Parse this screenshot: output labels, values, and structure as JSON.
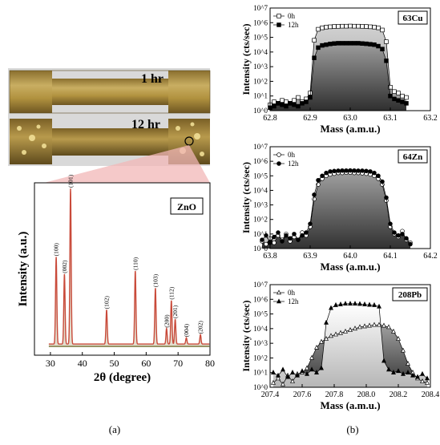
{
  "photo": {
    "label_top": "1 hr",
    "label_bottom": "12 hr",
    "colors": {
      "brass": "#a88a3e",
      "brass_light": "#cdb56a",
      "brass_dark": "#6e5622",
      "highlight": "#f1df96",
      "zoom_fill": "#f2b7b7"
    }
  },
  "panel_labels": {
    "a": "(a)",
    "b": "(b)"
  },
  "xrd": {
    "legend": "ZnO",
    "xlabel": "2θ (degree)",
    "ylabel": "Intensity (a.u.)",
    "xticks": [
      "30",
      "40",
      "50",
      "60",
      "70",
      "80"
    ],
    "line_color": "#c94a3a",
    "fill_color": "#8a7a3a",
    "peak_labels": [
      {
        "text": "(100)",
        "x": 31.8
      },
      {
        "text": "(002)",
        "x": 34.4
      },
      {
        "text": "(101)",
        "x": 36.3
      },
      {
        "text": "(102)",
        "x": 47.6
      },
      {
        "text": "(110)",
        "x": 56.6
      },
      {
        "text": "(103)",
        "x": 62.9
      },
      {
        "text": "(200)",
        "x": 66.4
      },
      {
        "text": "(112)",
        "x": 67.9
      },
      {
        "text": "(201)",
        "x": 69.1
      },
      {
        "text": "(004)",
        "x": 72.6
      },
      {
        "text": "(202)",
        "x": 77.0
      }
    ]
  },
  "chart_data": [
    {
      "type": "line",
      "title": "",
      "xlabel": "2θ (degree)",
      "ylabel": "Intensity (a.u.)",
      "xlim": [
        25,
        80
      ],
      "ylim": [
        0,
        1
      ],
      "series": [
        {
          "name": "ZnO",
          "x": [
            31.8,
            34.4,
            36.3,
            47.6,
            56.6,
            62.9,
            66.4,
            67.9,
            69.1,
            72.6,
            77.0
          ],
          "values": [
            0.56,
            0.45,
            1.0,
            0.22,
            0.47,
            0.36,
            0.1,
            0.28,
            0.16,
            0.04,
            0.06
          ]
        }
      ]
    },
    {
      "type": "area",
      "legend_label": "63Cu",
      "xlabel": "Mass (a.m.u.)",
      "ylabel": "Intensity (cts/sec)",
      "xlim": [
        62.8,
        63.2
      ],
      "ylim_exp": [
        0,
        7
      ],
      "yscale": "log",
      "xticks": [
        "62.8",
        "62.9",
        "63.0",
        "63.1",
        "63.2"
      ],
      "yticks": [
        "10^0",
        "10^1",
        "10^2",
        "10^3",
        "10^4",
        "10^5",
        "10^6",
        "10^7"
      ],
      "series": [
        {
          "name": "0h",
          "marker": "open-square",
          "x": [
            62.8,
            62.81,
            62.82,
            62.83,
            62.84,
            62.85,
            62.86,
            62.87,
            62.88,
            62.89,
            62.9,
            62.91,
            62.92,
            62.93,
            62.94,
            62.95,
            62.96,
            62.97,
            62.98,
            62.99,
            63.0,
            63.01,
            63.02,
            63.03,
            63.04,
            63.05,
            63.06,
            63.07,
            63.08,
            63.09,
            63.1,
            63.11,
            63.12,
            63.13,
            63.14
          ],
          "log10": [
            0.4,
            0.6,
            0.5,
            0.7,
            0.6,
            0.5,
            0.7,
            0.9,
            0.6,
            0.8,
            1.2,
            4.8,
            5.55,
            5.65,
            5.7,
            5.72,
            5.74,
            5.75,
            5.76,
            5.76,
            5.77,
            5.76,
            5.76,
            5.75,
            5.74,
            5.72,
            5.7,
            5.65,
            5.5,
            4.7,
            1.6,
            1.3,
            1.2,
            1.0,
            0.9
          ]
        },
        {
          "name": "12h",
          "marker": "filled-square",
          "x": [
            62.8,
            62.81,
            62.82,
            62.83,
            62.84,
            62.85,
            62.86,
            62.87,
            62.88,
            62.89,
            62.9,
            62.91,
            62.92,
            62.93,
            62.94,
            62.95,
            62.96,
            62.97,
            62.98,
            62.99,
            63.0,
            63.01,
            63.02,
            63.03,
            63.04,
            63.05,
            63.06,
            63.07,
            63.08,
            63.09,
            63.1,
            63.11,
            63.12,
            63.13,
            63.14
          ],
          "log10": [
            0.2,
            0.3,
            0.5,
            0.4,
            0.3,
            0.5,
            0.4,
            0.3,
            0.5,
            0.6,
            0.9,
            3.6,
            4.3,
            4.45,
            4.5,
            4.55,
            4.58,
            4.6,
            4.6,
            4.6,
            4.6,
            4.6,
            4.6,
            4.58,
            4.56,
            4.53,
            4.5,
            4.4,
            4.2,
            3.4,
            1.0,
            0.8,
            0.7,
            0.6,
            0.5
          ]
        }
      ]
    },
    {
      "type": "area",
      "legend_label": "64Zn",
      "xlabel": "Mass (a.m.u.)",
      "ylabel": "Intensity (cts/sec)",
      "xlim": [
        63.8,
        64.2
      ],
      "ylim_exp": [
        0,
        7
      ],
      "yscale": "log",
      "xticks": [
        "63.8",
        "63.9",
        "64.0",
        "64.1",
        "64.2"
      ],
      "yticks": [
        "10^0",
        "10^1",
        "10^2",
        "10^3",
        "10^4",
        "10^5",
        "10^6",
        "10^7"
      ],
      "series": [
        {
          "name": "0h",
          "marker": "open-circle",
          "x": [
            63.78,
            63.79,
            63.8,
            63.81,
            63.82,
            63.83,
            63.84,
            63.85,
            63.86,
            63.87,
            63.88,
            63.89,
            63.9,
            63.91,
            63.92,
            63.93,
            63.94,
            63.95,
            63.96,
            63.97,
            63.98,
            63.99,
            64.0,
            64.01,
            64.02,
            64.03,
            64.04,
            64.05,
            64.06,
            64.07,
            64.08,
            64.09,
            64.1,
            64.11,
            64.12,
            64.13,
            64.14,
            64.15
          ],
          "log10": [
            0.5,
            0.3,
            0.7,
            0.4,
            0.9,
            0.6,
            1.0,
            0.5,
            0.8,
            0.6,
            1.1,
            0.9,
            1.5,
            3.4,
            4.4,
            4.8,
            5.0,
            5.1,
            5.15,
            5.2,
            5.2,
            5.22,
            5.22,
            5.2,
            5.2,
            5.18,
            5.15,
            5.1,
            5.0,
            4.8,
            4.4,
            3.3,
            1.5,
            1.0,
            0.8,
            1.2,
            0.6,
            0.4
          ]
        },
        {
          "name": "12h",
          "marker": "filled-circle",
          "x": [
            63.78,
            63.79,
            63.8,
            63.81,
            63.82,
            63.83,
            63.84,
            63.85,
            63.86,
            63.87,
            63.88,
            63.89,
            63.9,
            63.91,
            63.92,
            63.93,
            63.94,
            63.95,
            63.96,
            63.97,
            63.98,
            63.99,
            64.0,
            64.01,
            64.02,
            64.03,
            64.04,
            64.05,
            64.06,
            64.07,
            64.08,
            64.09,
            64.1,
            64.11,
            64.12,
            64.13,
            64.14,
            64.15
          ],
          "log10": [
            0.6,
            0.9,
            0.4,
            0.8,
            1.1,
            0.5,
            0.9,
            0.7,
            1.0,
            0.6,
            0.9,
            1.1,
            1.7,
            3.7,
            4.7,
            5.0,
            5.2,
            5.3,
            5.33,
            5.35,
            5.36,
            5.36,
            5.37,
            5.36,
            5.35,
            5.35,
            5.33,
            5.3,
            5.2,
            5.0,
            4.6,
            3.5,
            1.7,
            1.1,
            0.9,
            1.0,
            0.7,
            0.3
          ]
        }
      ]
    },
    {
      "type": "area",
      "legend_label": "208Pb",
      "xlabel": "Mass (a.m.u.)",
      "ylabel": "Intensity (cts/sec)",
      "xlim": [
        207.4,
        208.4
      ],
      "ylim_exp": [
        0,
        7
      ],
      "yscale": "log",
      "xticks": [
        "207.4",
        "207.6",
        "207.8",
        "208.0",
        "208.2",
        "208.4"
      ],
      "yticks": [
        "10^0",
        "10^1",
        "10^2",
        "10^3",
        "10^4",
        "10^5",
        "10^6",
        "10^7"
      ],
      "series": [
        {
          "name": "0h",
          "marker": "open-triangle",
          "x": [
            207.42,
            207.45,
            207.48,
            207.51,
            207.54,
            207.57,
            207.6,
            207.63,
            207.66,
            207.69,
            207.72,
            207.75,
            207.78,
            207.81,
            207.84,
            207.87,
            207.9,
            207.93,
            207.96,
            207.99,
            208.02,
            208.05,
            208.08,
            208.11,
            208.14,
            208.17,
            208.2,
            208.23,
            208.26,
            208.29,
            208.32,
            208.35,
            208.38
          ],
          "log10": [
            0.3,
            0.6,
            0.2,
            0.8,
            0.4,
            0.9,
            1.0,
            1.3,
            2.0,
            2.7,
            3.1,
            3.3,
            3.5,
            3.6,
            3.7,
            3.8,
            3.9,
            4.0,
            4.1,
            4.15,
            4.2,
            4.25,
            4.25,
            4.2,
            4.1,
            3.8,
            3.3,
            2.5,
            1.6,
            1.0,
            0.6,
            0.4,
            0.3
          ]
        },
        {
          "name": "12h",
          "marker": "filled-triangle",
          "x": [
            207.42,
            207.45,
            207.48,
            207.51,
            207.54,
            207.57,
            207.6,
            207.63,
            207.66,
            207.69,
            207.72,
            207.75,
            207.78,
            207.81,
            207.84,
            207.87,
            207.9,
            207.93,
            207.96,
            207.99,
            208.02,
            208.05,
            208.08,
            208.11,
            208.14,
            208.17,
            208.2,
            208.23,
            208.26,
            208.29,
            208.32,
            208.35,
            208.38
          ],
          "log10": [
            1.0,
            0.8,
            1.2,
            0.7,
            1.0,
            0.8,
            1.1,
            0.9,
            1.2,
            1.0,
            1.3,
            4.4,
            5.4,
            5.6,
            5.65,
            5.7,
            5.7,
            5.7,
            5.68,
            5.65,
            5.62,
            5.6,
            5.5,
            1.8,
            1.2,
            1.0,
            1.1,
            0.9,
            1.0,
            0.8,
            0.7,
            0.9,
            0.6
          ]
        }
      ]
    }
  ]
}
